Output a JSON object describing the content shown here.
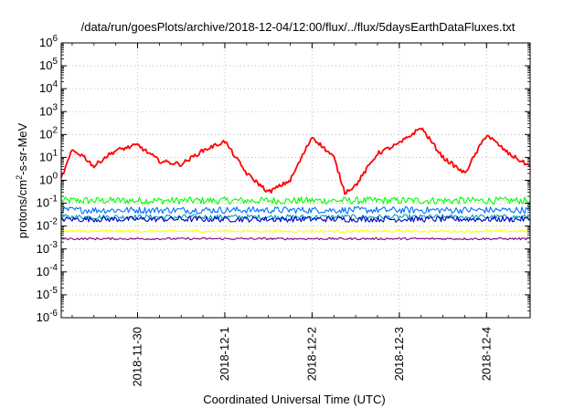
{
  "chart_data": {
    "type": "line",
    "title": "/data/run/goesPlots/archive/2018-12-04/12:00/flux/../flux/5daysEarthDataFluxes.txt",
    "xlabel": "Coordinated Universal Time (UTC)",
    "ylabel": {
      "prefix": "protons/cm",
      "sup": "2",
      "suffix": "-s-sr-MeV"
    },
    "y_scale": "log",
    "ylim_exponents": [
      -6,
      6
    ],
    "xlim": [
      "2018-11-29 03:00",
      "2018-12-04 12:00"
    ],
    "x_ticks": [
      "2018-11-30",
      "2018-12-1",
      "2018-12-2",
      "2018-12-3",
      "2018-12-4"
    ],
    "grid": true,
    "series": [
      {
        "color": "#ff0000",
        "x": [
          "2018-11-29 03:00",
          "2018-11-29 06:00",
          "2018-11-29 09:00",
          "2018-11-29 12:00",
          "2018-11-29 15:00",
          "2018-11-29 18:00",
          "2018-11-30 00:00",
          "2018-11-30 06:00",
          "2018-11-30 12:00",
          "2018-11-30 18:00",
          "2018-12-01 00:00",
          "2018-12-01 06:00",
          "2018-12-01 12:00",
          "2018-12-01 18:00",
          "2018-12-02 00:00",
          "2018-12-02 06:00",
          "2018-12-02 09:00",
          "2018-12-02 12:00",
          "2018-12-02 18:00",
          "2018-12-03 00:00",
          "2018-12-03 06:00",
          "2018-12-03 12:00",
          "2018-12-03 18:00",
          "2018-12-04 00:00",
          "2018-12-04 06:00",
          "2018-12-04 12:00"
        ],
        "y": [
          1.2,
          20,
          12,
          4,
          10,
          20,
          35,
          7,
          5,
          20,
          50,
          2,
          0.3,
          1,
          80,
          10,
          0.3,
          0.6,
          15,
          40,
          200,
          10,
          2,
          100,
          15,
          4
        ]
      },
      {
        "color": "#00ff00",
        "x": [
          "2018-11-29 03:00",
          "2018-12-04 12:00"
        ],
        "y": [
          0.13,
          0.13
        ]
      },
      {
        "color": "#0070ff",
        "x": [
          "2018-11-29 03:00",
          "2018-12-04 12:00"
        ],
        "y": [
          0.05,
          0.05
        ]
      },
      {
        "color": "#00a0b0",
        "x": [
          "2018-11-29 03:00",
          "2018-12-04 12:00"
        ],
        "y": [
          0.025,
          0.025
        ]
      },
      {
        "color": "#0000c0",
        "x": [
          "2018-11-29 03:00",
          "2018-12-04 12:00"
        ],
        "y": [
          0.02,
          0.02
        ]
      },
      {
        "color": "#ffff00",
        "x": [
          "2018-11-29 03:00",
          "2018-12-04 12:00"
        ],
        "y": [
          0.006,
          0.006
        ]
      },
      {
        "color": "#800080",
        "x": [
          "2018-11-29 03:00",
          "2018-12-04 12:00"
        ],
        "y": [
          0.0028,
          0.0028
        ]
      }
    ]
  }
}
